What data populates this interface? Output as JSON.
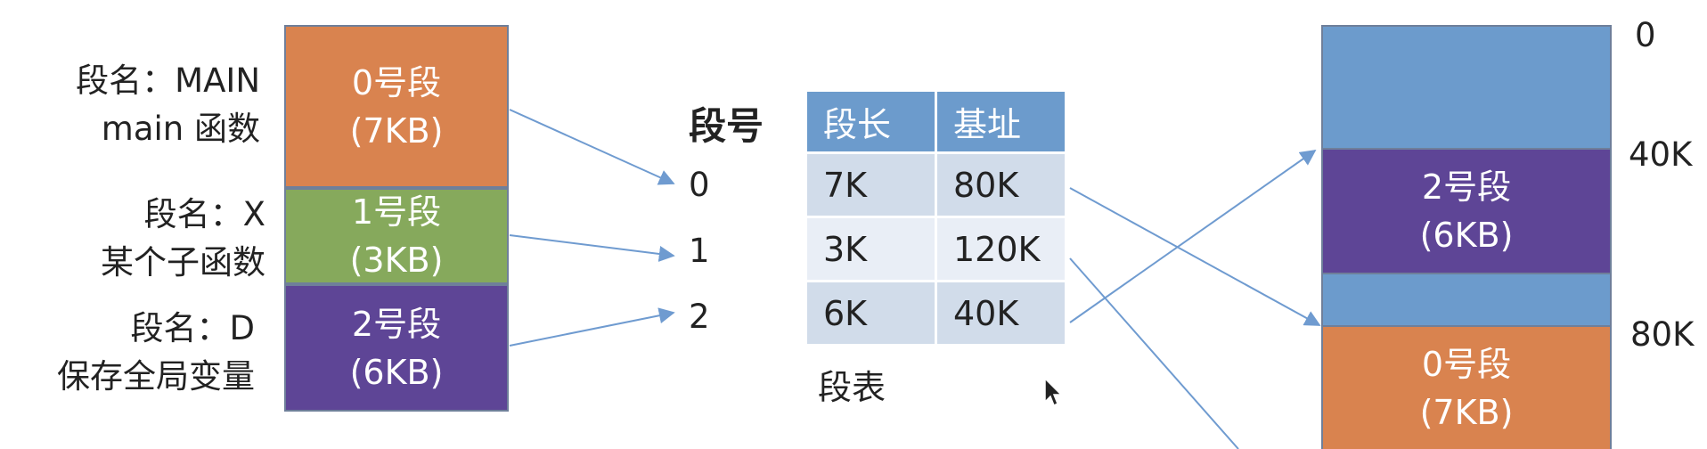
{
  "logical_segments": [
    {
      "name_label": "段名：MAIN",
      "desc": "main 函数",
      "title": "0号段",
      "size": "(7KB)"
    },
    {
      "name_label": "段名：X",
      "desc": "某个子函数",
      "title": "1号段",
      "size": "(3KB)"
    },
    {
      "name_label": "段名：D",
      "desc": "保存全局变量",
      "title": "2号段",
      "size": "(6KB)"
    }
  ],
  "segment_number_header": "段号",
  "segment_numbers": [
    "0",
    "1",
    "2"
  ],
  "segment_table": {
    "headers": [
      "段长",
      "基址"
    ],
    "rows": [
      [
        "7K",
        "80K"
      ],
      [
        "3K",
        "120K"
      ],
      [
        "6K",
        "40K"
      ]
    ],
    "caption": "段表"
  },
  "memory": {
    "addresses": [
      "0",
      "40K",
      "80K"
    ],
    "blocks": [
      {
        "title": "2号段",
        "size": "(6KB)"
      },
      {
        "title": "0号段",
        "size": "(7KB)"
      }
    ]
  },
  "colors": {
    "seg0": "#d9834f",
    "seg1": "#86a95c",
    "seg2": "#5e4596",
    "free_memory": "#6c9bcc",
    "table_header": "#6c9bcc",
    "arrow": "#6f9bd0"
  }
}
